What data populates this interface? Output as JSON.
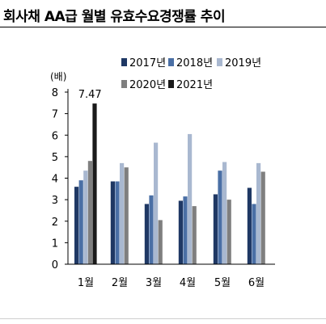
{
  "title": "회사채 AA급 월별 유효수요경쟁률 추이",
  "chart_data": {
    "type": "bar",
    "unit_label": "(배)",
    "categories": [
      "1월",
      "2월",
      "3월",
      "4월",
      "5월",
      "6월"
    ],
    "ylim": [
      0,
      8
    ],
    "yticks": [
      0,
      1,
      2,
      3,
      4,
      5,
      6,
      7,
      8
    ],
    "grid": false,
    "legend_position": "top-right",
    "series": [
      {
        "name": "2017년",
        "color": "#1f3864",
        "values": [
          3.6,
          3.85,
          2.8,
          2.95,
          3.25,
          3.55
        ]
      },
      {
        "name": "2018년",
        "color": "#4a6fa5",
        "values": [
          3.9,
          3.85,
          3.2,
          3.15,
          4.35,
          2.8
        ]
      },
      {
        "name": "2019년",
        "color": "#a9b8d0",
        "values": [
          4.35,
          4.7,
          5.65,
          6.05,
          4.75,
          4.7
        ]
      },
      {
        "name": "2020년",
        "color": "#7f7f7f",
        "values": [
          4.8,
          4.5,
          2.05,
          2.7,
          3.0,
          4.3
        ]
      },
      {
        "name": "2021년",
        "color": "#1a1a1a",
        "values": [
          7.47,
          null,
          null,
          null,
          null,
          null
        ]
      }
    ],
    "annotations": [
      {
        "text": "7.47",
        "series": "2021년",
        "category": "1월"
      }
    ]
  }
}
